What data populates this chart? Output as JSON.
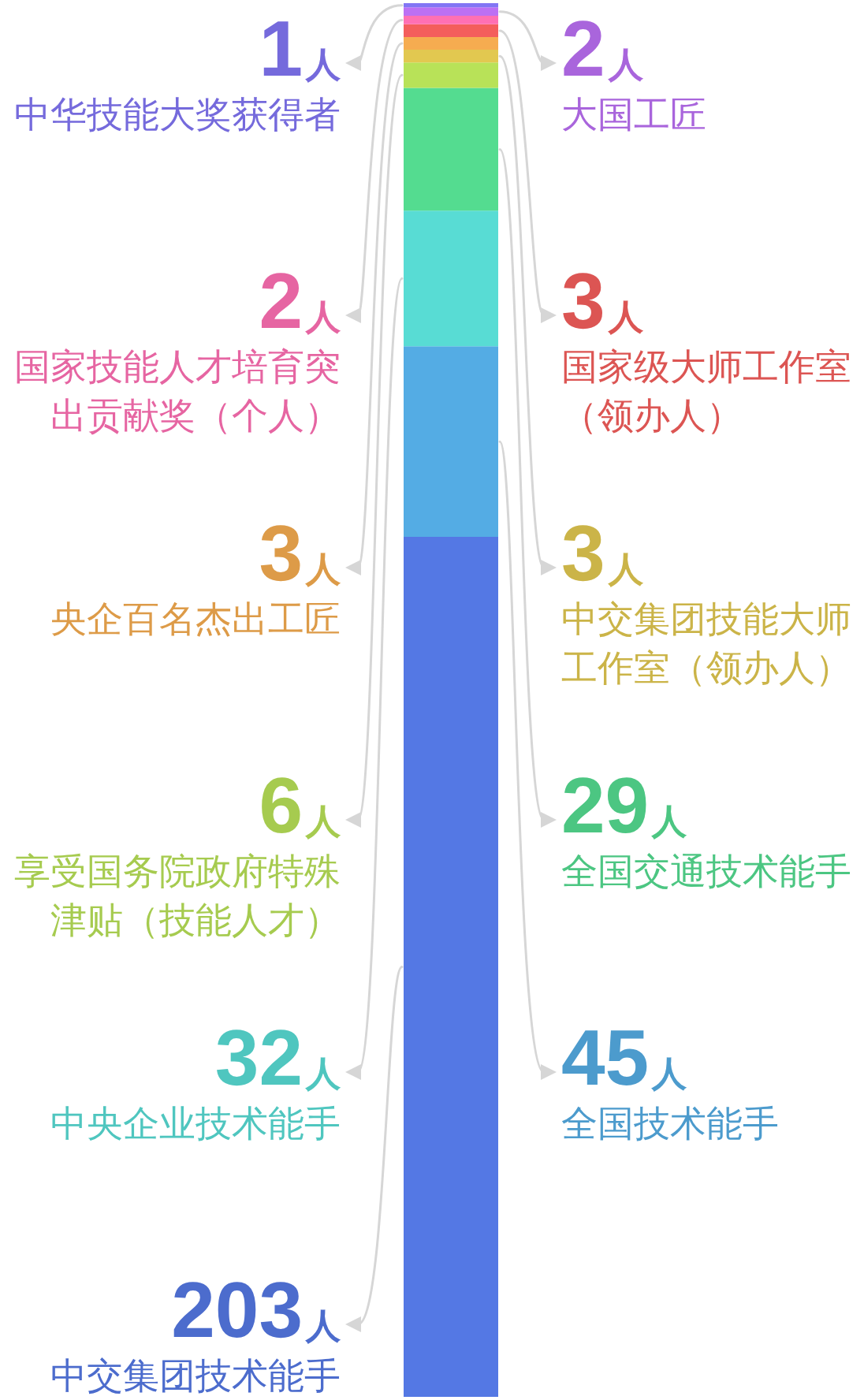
{
  "chart_data": {
    "type": "bar",
    "stacked": true,
    "tick_labels": false,
    "categories": [
      null
    ],
    "series": [
      {
        "name": "中交集团技术能手",
        "color": "#5478e4",
        "values": [
          203
        ],
        "value_labels": [
          "203人"
        ]
      },
      {
        "name": "全国技术能手",
        "color": "#54ace4",
        "values": [
          45
        ],
        "value_labels": [
          "45人"
        ]
      },
      {
        "name": "中央企业技术能手",
        "color": "#58dcd4",
        "values": [
          32
        ],
        "value_labels": [
          "32人"
        ]
      },
      {
        "name": "全国交通技术能手",
        "color": "#54dc90",
        "values": [
          29
        ],
        "value_labels": [
          "29人"
        ]
      },
      {
        "name": "享受国务院政府特殊津贴（技能人才）",
        "color": "#b8e258",
        "values": [
          6
        ],
        "value_labels": [
          "6人"
        ]
      },
      {
        "name": "中交集团技能大师工作室（领办人）",
        "color": "#e2c850",
        "values": [
          3
        ],
        "value_labels": [
          "3人"
        ]
      },
      {
        "name": "央企百名杰出工匠",
        "color": "#f6ac50",
        "values": [
          3
        ],
        "value_labels": [
          "3人"
        ]
      },
      {
        "name": "国家级大师工作室（领办人）",
        "color": "#f45e5c",
        "values": [
          3
        ],
        "value_labels": [
          "3人"
        ]
      },
      {
        "name": "国家技能人才培育突出贡献奖（个人）",
        "color": "#ff70b4",
        "values": [
          2
        ],
        "value_labels": [
          "2人"
        ]
      },
      {
        "name": "大国工匠",
        "color": "#bc70f4",
        "values": [
          2
        ],
        "value_labels": [
          "2人"
        ]
      },
      {
        "name": "中华技能大奖获得者",
        "color": "#8276f4",
        "values": [
          1
        ],
        "value_labels": [
          "1人"
        ]
      }
    ]
  }
}
